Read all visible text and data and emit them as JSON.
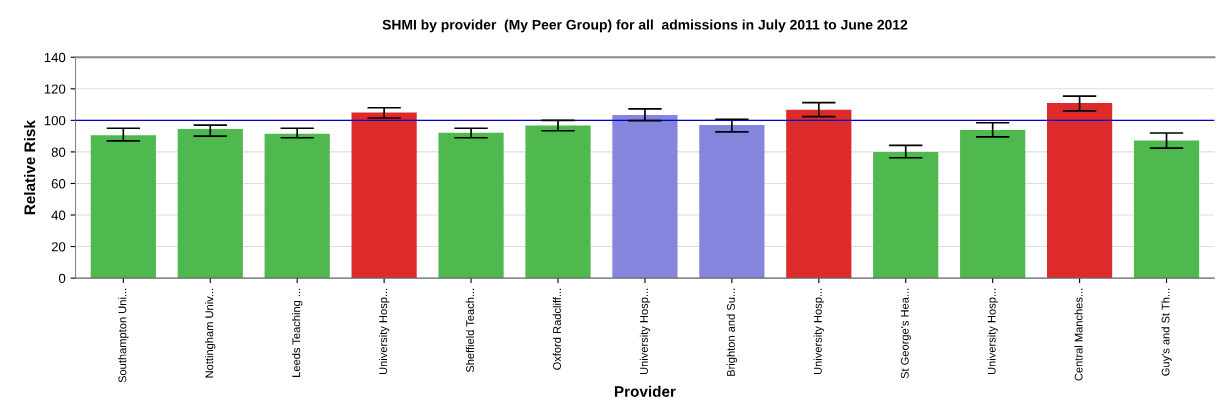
{
  "chart_data": {
    "type": "bar",
    "title": "SHMI by provider  (My Peer Group) for all  admissions in July 2011 to June 2012",
    "xlabel": "Provider",
    "ylabel": "Relative Risk",
    "categories": [
      "Southampton Uni...",
      "Nottingham Univ...",
      "Leeds Teaching ...",
      "University Hosp...",
      "Sheffield Teach...",
      "Oxford Radcliff...",
      "University Hosp...",
      "Brighton and Su...",
      "University Hosp...",
      "St George's Hea...",
      "University Hosp...",
      "Central Manches...",
      "Guy's and St Th..."
    ],
    "values": [
      90.5,
      94.6,
      91.5,
      105,
      92.2,
      96.8,
      103.4,
      97,
      106.8,
      80,
      93.9,
      111,
      87.3
    ],
    "errors": [
      [
        87,
        95
      ],
      [
        90,
        97
      ],
      [
        89,
        95
      ],
      [
        101.5,
        108
      ],
      [
        89,
        95
      ],
      [
        93.4,
        100
      ],
      [
        99.8,
        107.3
      ],
      [
        92.7,
        100.7
      ],
      [
        102.4,
        111.2
      ],
      [
        76.3,
        84.1
      ],
      [
        89.5,
        98.5
      ],
      [
        106,
        115.4
      ],
      [
        82.4,
        92
      ]
    ],
    "colors": [
      "#4fb84f",
      "#4fb84f",
      "#4fb84f",
      "#dd2a2a",
      "#4fb84f",
      "#4fb84f",
      "#8585dd",
      "#8585dd",
      "#dd2a2a",
      "#4fb84f",
      "#4fb84f",
      "#dd2a2a",
      "#4fb84f"
    ],
    "ylim": [
      0,
      140
    ],
    "yticks": [
      0,
      20,
      40,
      60,
      80,
      100,
      120,
      140
    ],
    "grid": "y",
    "ref_lines": [
      {
        "axis": "y",
        "value": 100,
        "color": "#0000cc"
      }
    ]
  }
}
